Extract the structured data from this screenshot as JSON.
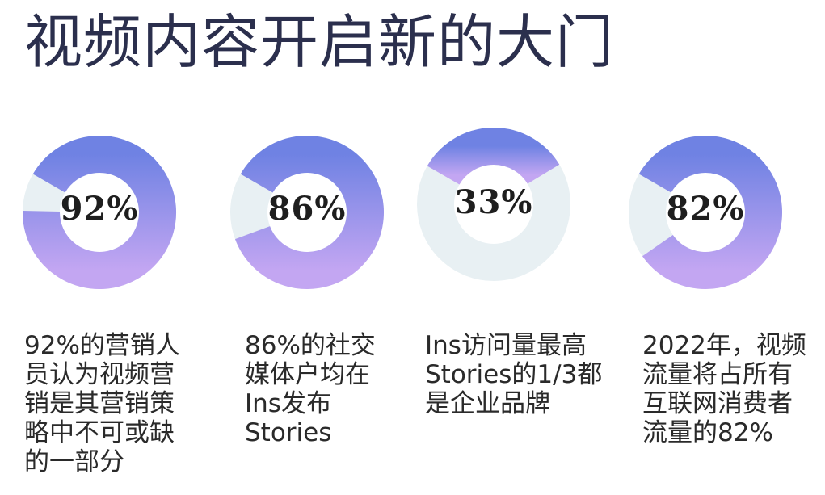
{
  "title": "视频内容开启新的大门",
  "colors": {
    "track": "#e8f0f3",
    "gradient_top": "#6f82e3",
    "gradient_bottom": "#c3a6f2",
    "title": "#2b2f4d"
  },
  "chart_data": [
    {
      "type": "pie",
      "label": "92%",
      "values": [
        92,
        8
      ],
      "caption_lines": [
        "92%的营销人",
        "员认为视频营",
        "销是其营销策",
        "略中不可或缺",
        "的一部分"
      ]
    },
    {
      "type": "pie",
      "label": "86%",
      "values": [
        86,
        14
      ],
      "caption_lines": [
        "86%的社交",
        "媒体户均在",
        "Ins发布",
        "Stories"
      ]
    },
    {
      "type": "pie",
      "label": "33%",
      "values": [
        33,
        67
      ],
      "caption_lines": [
        "Ins访问量最高",
        "Stories的1/3都",
        "是企业品牌"
      ]
    },
    {
      "type": "pie",
      "label": "82%",
      "values": [
        82,
        18
      ],
      "caption_lines": [
        "2022年，视频",
        "流量将占所有",
        "互联网消费者",
        "流量的82%"
      ]
    }
  ]
}
